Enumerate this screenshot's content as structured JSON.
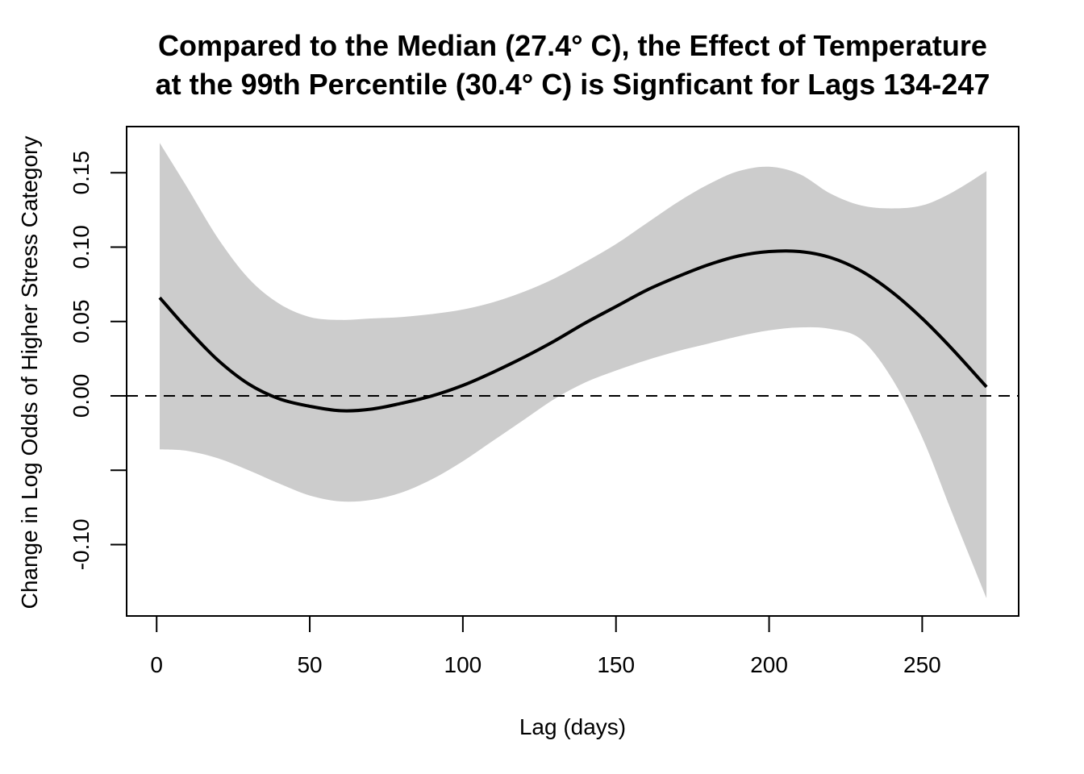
{
  "chart_data": {
    "type": "line",
    "title": [
      "Compared to the Median (27.4° C), the Effect of Temperature",
      "at the 99th Percentile (30.4° C) is Signficant for Lags 134-247"
    ],
    "xlabel": "Lag (days)",
    "ylabel": "Change in Log Odds of Higher Stress Category",
    "xlim": [
      -9.8,
      281.5
    ],
    "ylim": [
      -0.148,
      0.181
    ],
    "x_ticks": [
      0,
      50,
      100,
      150,
      200,
      250
    ],
    "x_tick_labels": [
      "0",
      "50",
      "100",
      "150",
      "200",
      "250"
    ],
    "y_ticks": [
      -0.1,
      -0.05,
      0.0,
      0.05,
      0.1,
      0.15
    ],
    "y_tick_labels": [
      "-0.10",
      "",
      "0.00",
      "0.05",
      "0.10",
      "0.15"
    ],
    "reference_line": {
      "y": 0,
      "style": "dashed"
    },
    "grid": false,
    "series": [
      {
        "kind": "estimate",
        "x": [
          1,
          10,
          20,
          30,
          40,
          50,
          60,
          70,
          80,
          90,
          100,
          110,
          120,
          130,
          140,
          150,
          160,
          170,
          180,
          190,
          200,
          210,
          220,
          230,
          240,
          250,
          260,
          271
        ],
        "y": [
          0.066,
          0.045,
          0.024,
          0.008,
          -0.002,
          -0.007,
          -0.01,
          -0.009,
          -0.005,
          0.0,
          0.007,
          0.016,
          0.026,
          0.037,
          0.049,
          0.06,
          0.071,
          0.08,
          0.088,
          0.094,
          0.097,
          0.097,
          0.093,
          0.084,
          0.07,
          0.052,
          0.031,
          0.006
        ]
      },
      {
        "kind": "ci_upper",
        "x": [
          1,
          10,
          20,
          30,
          40,
          50,
          60,
          70,
          80,
          90,
          100,
          110,
          120,
          130,
          140,
          150,
          160,
          170,
          180,
          190,
          200,
          210,
          220,
          230,
          240,
          250,
          260,
          271
        ],
        "y": [
          0.17,
          0.14,
          0.106,
          0.079,
          0.062,
          0.053,
          0.051,
          0.052,
          0.053,
          0.055,
          0.058,
          0.063,
          0.07,
          0.079,
          0.09,
          0.102,
          0.116,
          0.13,
          0.142,
          0.151,
          0.154,
          0.149,
          0.136,
          0.128,
          0.126,
          0.128,
          0.137,
          0.151
        ]
      },
      {
        "kind": "ci_lower",
        "x": [
          1,
          10,
          20,
          30,
          40,
          50,
          60,
          70,
          80,
          90,
          100,
          110,
          120,
          130,
          140,
          150,
          160,
          170,
          180,
          190,
          200,
          210,
          220,
          230,
          240,
          250,
          260,
          271
        ],
        "y": [
          -0.036,
          -0.037,
          -0.042,
          -0.05,
          -0.059,
          -0.067,
          -0.071,
          -0.07,
          -0.065,
          -0.056,
          -0.044,
          -0.03,
          -0.016,
          -0.002,
          0.009,
          0.017,
          0.024,
          0.03,
          0.035,
          0.04,
          0.044,
          0.046,
          0.045,
          0.038,
          0.012,
          -0.028,
          -0.08,
          -0.136
        ]
      }
    ],
    "colors": {
      "ci_band": "#cccccc",
      "line": "#000000",
      "frame": "#000000"
    }
  }
}
